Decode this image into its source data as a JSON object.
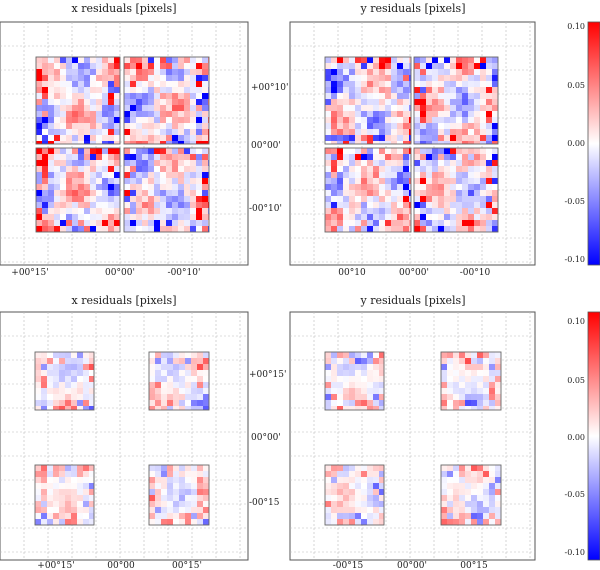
{
  "panels": [
    {
      "title": "x residuals [pixels]",
      "xticks": [
        "+00°15'",
        "00°00'",
        "-00°10'"
      ],
      "yticks": [
        "+00°10'",
        "00°00'",
        "-00°10'"
      ]
    },
    {
      "title": "y residuals [pixels]",
      "xticks": [
        "00°10",
        "00°00'",
        "-00°10"
      ],
      "yticks": []
    },
    {
      "title": "x residuals [pixels]",
      "xticks": [
        "+00°15'",
        "00°00",
        "00°15'"
      ],
      "yticks": [
        "+00°15'",
        "00°00'",
        "-00°15"
      ]
    },
    {
      "title": "y residuals [pixels]",
      "xticks": [
        "-00°15",
        "00°00'",
        "00°15"
      ],
      "yticks": []
    }
  ],
  "colorbars": [
    {
      "ticks": [
        "0.10",
        "0.05",
        "0.00",
        "-0.05",
        "-0.10"
      ]
    },
    {
      "ticks": [
        "0.10",
        "0.05",
        "0.00",
        "-0.05",
        "-0.10"
      ]
    }
  ],
  "chart_data": {
    "type": "heatmap",
    "description_free": true,
    "colormap": {
      "min": -0.1,
      "max": 0.1,
      "low_color": "#0000ff",
      "mid_color": "#ffffff",
      "high_color": "#ff0000"
    },
    "grid": true,
    "panels": [
      {
        "title": "x residuals [pixels]",
        "layout": "2x2 adjacent detector chips"
      },
      {
        "title": "y residuals [pixels]",
        "layout": "2x2 adjacent detector chips"
      },
      {
        "title": "x residuals [pixels]",
        "layout": "2x2 separated detector chips"
      },
      {
        "title": "y residuals [pixels]",
        "layout": "2x2 separated detector chips"
      }
    ]
  }
}
